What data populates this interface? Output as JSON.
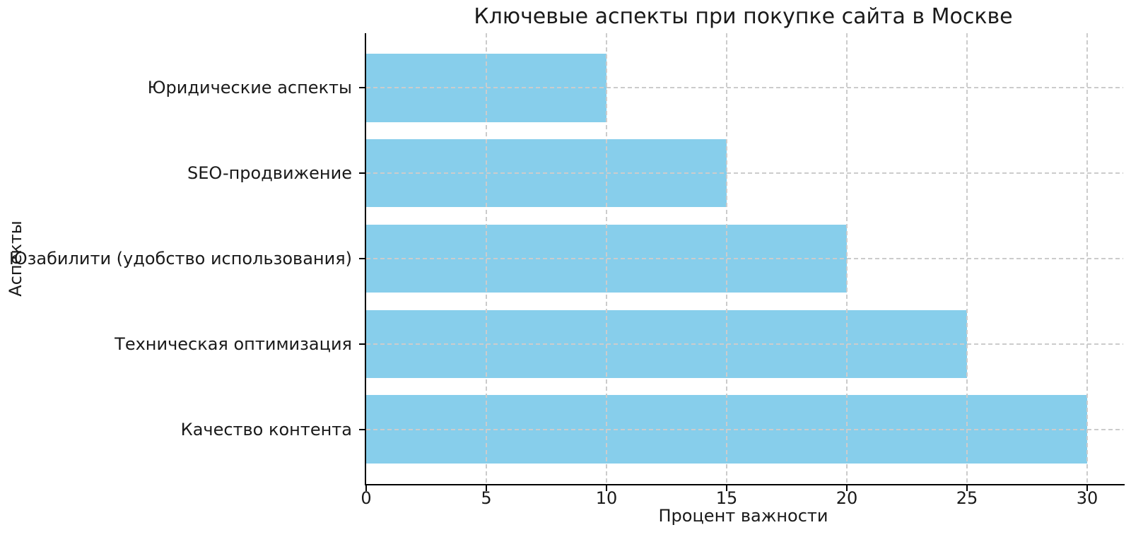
{
  "chart_data": {
    "type": "bar",
    "orientation": "horizontal",
    "title": "Ключевые аспекты при покупке сайта в Москве",
    "xlabel": "Процент важности",
    "ylabel": "Аспекты",
    "categories": [
      "Юридические аспекты",
      "SEO-продвижение",
      "Юзабилити (удобство использования)",
      "Техническая оптимизация",
      "Качество контента"
    ],
    "values": [
      10,
      15,
      20,
      25,
      30
    ],
    "category_order": "top_to_bottom",
    "xticks": [
      0,
      5,
      10,
      15,
      20,
      25,
      30
    ],
    "xlim": [
      0,
      31.5
    ],
    "grid": true,
    "grid_style": "dashed",
    "bar_color": "#87CEEB",
    "grid_color": "#cccccc",
    "axis_color": "#000000",
    "text_color": "#1a1a1a",
    "background_color": "#ffffff",
    "legend": null
  }
}
